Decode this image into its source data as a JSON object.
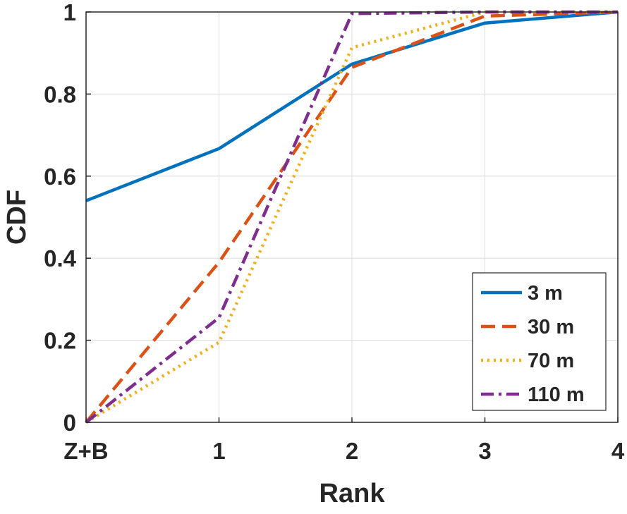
{
  "chart_data": {
    "type": "line",
    "title": "",
    "xlabel": "Rank",
    "ylabel": "CDF",
    "categories": [
      "Z+B",
      "1",
      "2",
      "3",
      "4"
    ],
    "x": [
      0,
      1,
      2,
      3,
      4
    ],
    "xlim": [
      0,
      4
    ],
    "ylim": [
      0,
      1
    ],
    "yticks": [
      "0",
      "0.2",
      "0.4",
      "0.6",
      "0.8",
      "1"
    ],
    "ytick_values": [
      0,
      0.2,
      0.4,
      0.6,
      0.8,
      1
    ],
    "grid": true,
    "legend_position": "bottom-right",
    "series": [
      {
        "name": "3 m",
        "color": "#0072BD",
        "style": "solid",
        "values": [
          0.54,
          0.667,
          0.873,
          0.973,
          1.0
        ]
      },
      {
        "name": "30 m",
        "color": "#D95319",
        "style": "dashed",
        "values": [
          0.0,
          0.39,
          0.865,
          0.99,
          1.0
        ]
      },
      {
        "name": "70 m",
        "color": "#EDB120",
        "style": "dotted",
        "values": [
          0.0,
          0.195,
          0.913,
          1.0,
          1.0
        ]
      },
      {
        "name": "110 m",
        "color": "#7E2F8E",
        "style": "dashdot",
        "values": [
          0.0,
          0.255,
          0.996,
          1.0,
          1.0
        ]
      }
    ]
  }
}
